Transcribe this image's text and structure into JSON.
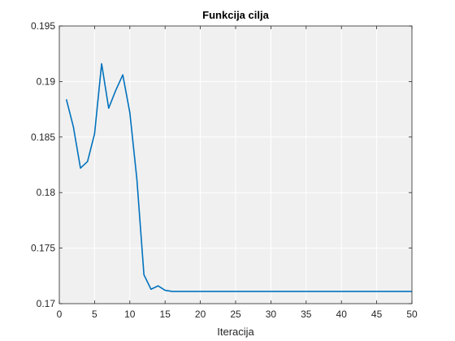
{
  "chart_data": {
    "type": "line",
    "title": "Funkcija cilja",
    "xlabel": "Iteracija",
    "ylabel": "",
    "xlim": [
      0,
      50
    ],
    "ylim": [
      0.17,
      0.195
    ],
    "xticks": [
      0,
      5,
      10,
      15,
      20,
      25,
      30,
      35,
      40,
      45,
      50
    ],
    "xtick_labels": [
      "0",
      "5",
      "10",
      "15",
      "20",
      "25",
      "30",
      "35",
      "40",
      "45",
      "50"
    ],
    "yticks": [
      0.17,
      0.175,
      0.18,
      0.185,
      0.19,
      0.195
    ],
    "ytick_labels": [
      "0.17",
      "0.175",
      "0.18",
      "0.185",
      "0.19",
      "0.195"
    ],
    "grid": true,
    "line_color": "#0072BD",
    "axes_background": "#F0F0F0",
    "series": [
      {
        "x": [
          1,
          2,
          3,
          4,
          5,
          6,
          7,
          8,
          9,
          10,
          11,
          12,
          13,
          14,
          15,
          16,
          17,
          18,
          19,
          20,
          21,
          22,
          23,
          24,
          25,
          26,
          27,
          28,
          29,
          30,
          31,
          32,
          33,
          34,
          35,
          36,
          37,
          38,
          39,
          40,
          41,
          42,
          43,
          44,
          45,
          46,
          47,
          48,
          49,
          50
        ],
        "values": [
          0.1884,
          0.1859,
          0.1822,
          0.1828,
          0.1853,
          0.1916,
          0.1876,
          0.1892,
          0.1906,
          0.1872,
          0.1812,
          0.1726,
          0.1713,
          0.1716,
          0.1712,
          0.1711,
          0.1711,
          0.1711,
          0.1711,
          0.1711,
          0.1711,
          0.1711,
          0.1711,
          0.1711,
          0.1711,
          0.1711,
          0.1711,
          0.1711,
          0.1711,
          0.1711,
          0.1711,
          0.1711,
          0.1711,
          0.1711,
          0.1711,
          0.1711,
          0.1711,
          0.1711,
          0.1711,
          0.1711,
          0.1711,
          0.1711,
          0.1711,
          0.1711,
          0.1711,
          0.1711,
          0.1711,
          0.1711,
          0.1711,
          0.1711
        ]
      }
    ]
  }
}
